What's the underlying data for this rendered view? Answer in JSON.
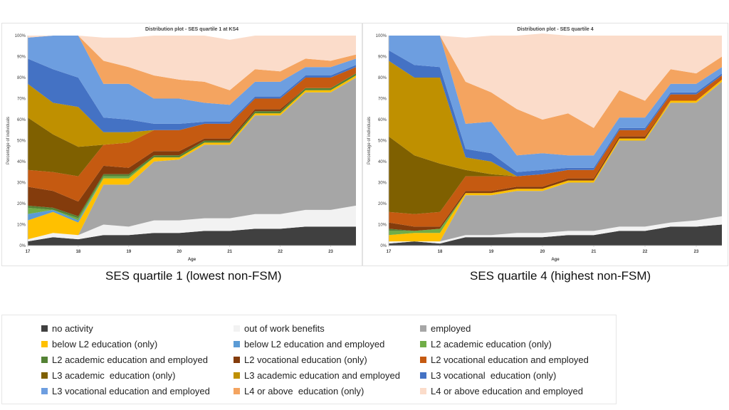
{
  "chart_data": [
    {
      "type": "area",
      "stacked": true,
      "title": "Distribution plot - SES quartile 1 at KS4",
      "xlabel": "Age",
      "ylabel": "Percentage of individuals",
      "ylim": [
        0,
        100
      ],
      "x": [
        17,
        17.5,
        18,
        18.5,
        19,
        19.5,
        20,
        20.5,
        21,
        21.5,
        22,
        22.5,
        23,
        23.5
      ],
      "x_ticks": [
        "17",
        "18",
        "19",
        "20",
        "21",
        "22",
        "23"
      ],
      "y_ticks": [
        "0%",
        "10%",
        "20%",
        "30%",
        "40%",
        "50%",
        "60%",
        "70%",
        "80%",
        "90%",
        "100%"
      ],
      "series": [
        {
          "name": "no activity",
          "values": [
            2,
            4,
            3,
            5,
            5,
            6,
            6,
            7,
            7,
            8,
            8,
            9,
            9,
            9
          ]
        },
        {
          "name": "out of work benefits",
          "values": [
            1,
            2,
            2,
            5,
            4,
            6,
            6,
            6,
            6,
            7,
            7,
            8,
            8,
            10
          ]
        },
        {
          "name": "employed",
          "values": [
            0,
            0,
            0,
            19,
            20,
            28,
            29,
            35,
            35,
            47,
            47,
            56,
            56,
            61
          ]
        },
        {
          "name": "below L2 education (only)",
          "values": [
            9,
            10,
            6,
            3,
            3,
            2,
            1,
            1,
            1,
            1,
            1,
            1,
            1,
            1
          ]
        },
        {
          "name": "below L2 education and employed",
          "values": [
            3,
            1,
            1,
            0,
            0,
            0,
            0,
            0,
            0,
            0,
            0,
            0,
            0,
            0
          ]
        },
        {
          "name": "L2 academic education (only)",
          "values": [
            3,
            0,
            1,
            1,
            1,
            0,
            0,
            0,
            0,
            0,
            0,
            0,
            0,
            0
          ]
        },
        {
          "name": "L2 academic education and employed",
          "values": [
            1,
            1,
            1,
            1,
            1,
            1,
            1,
            1,
            1,
            1,
            1,
            1,
            1,
            1
          ]
        },
        {
          "name": "L2 vocational education (only)",
          "values": [
            9,
            8,
            7,
            4,
            3,
            2,
            2,
            1,
            1,
            1,
            1,
            0,
            0,
            0
          ]
        },
        {
          "name": "L2 vocational education and employed",
          "values": [
            8,
            9,
            12,
            10,
            12,
            10,
            10,
            7,
            7,
            5,
            5,
            5,
            5,
            3
          ]
        },
        {
          "name": "L3 academic  education (only)",
          "values": [
            25,
            18,
            14,
            0,
            0,
            0,
            0,
            0,
            0,
            0,
            0,
            0,
            0,
            0
          ]
        },
        {
          "name": "L3 academic education and employed",
          "values": [
            16,
            15,
            19,
            6,
            5,
            0,
            0,
            0,
            0,
            0,
            0,
            0,
            0,
            0
          ]
        },
        {
          "name": "L3 vocational  education (only)",
          "values": [
            12,
            16,
            14,
            7,
            6,
            3,
            3,
            1,
            1,
            1,
            1,
            1,
            1,
            1
          ]
        },
        {
          "name": "L3 vocational education and employed",
          "values": [
            10,
            16,
            20,
            16,
            17,
            12,
            12,
            9,
            8,
            7,
            7,
            4,
            4,
            3
          ]
        },
        {
          "name": "L4 or above  education (only)",
          "values": [
            0,
            0,
            0,
            11,
            8,
            11,
            9,
            10,
            7,
            6,
            5,
            4,
            3,
            2
          ]
        },
        {
          "name": "L4 or above education and employed",
          "values": [
            1,
            0,
            0,
            11,
            14,
            19,
            21,
            22,
            24,
            16,
            17,
            11,
            12,
            9
          ]
        }
      ]
    },
    {
      "type": "area",
      "stacked": true,
      "title": "Distribution plot - SES quartile 4",
      "xlabel": "Age",
      "ylabel": "Percentage of individuals",
      "ylim": [
        0,
        100
      ],
      "x": [
        17,
        17.5,
        18,
        18.5,
        19,
        19.5,
        20,
        20.5,
        21,
        21.5,
        22,
        22.5,
        23,
        23.5
      ],
      "x_ticks": [
        "17",
        "18",
        "19",
        "20",
        "21",
        "22",
        "23"
      ],
      "y_ticks": [
        "0%",
        "10%",
        "20%",
        "30%",
        "40%",
        "50%",
        "60%",
        "70%",
        "80%",
        "90%",
        "100%"
      ],
      "series": [
        {
          "name": "no activity",
          "values": [
            1,
            2,
            1,
            4,
            4,
            4,
            4,
            5,
            5,
            7,
            7,
            9,
            9,
            10
          ]
        },
        {
          "name": "out of work benefits",
          "values": [
            1,
            0,
            1,
            1,
            1,
            2,
            2,
            2,
            2,
            2,
            2,
            2,
            3,
            4
          ]
        },
        {
          "name": "employed",
          "values": [
            0,
            0,
            0,
            19,
            19,
            20,
            20,
            23,
            23,
            41,
            41,
            57,
            56,
            64
          ]
        },
        {
          "name": "below L2 education (only)",
          "values": [
            3,
            4,
            4,
            1,
            1,
            1,
            1,
            1,
            1,
            1,
            1,
            1,
            1,
            1
          ]
        },
        {
          "name": "below L2 education and employed",
          "values": [
            0,
            0,
            0,
            0,
            0,
            0,
            0,
            0,
            0,
            0,
            0,
            0,
            0,
            0
          ]
        },
        {
          "name": "L2 academic education (only)",
          "values": [
            2,
            1,
            2,
            0,
            0,
            0,
            0,
            0,
            0,
            0,
            0,
            0,
            0,
            0
          ]
        },
        {
          "name": "L2 academic education and employed",
          "values": [
            1,
            0,
            0,
            0,
            0,
            0,
            0,
            0,
            0,
            0,
            0,
            0,
            0,
            0
          ]
        },
        {
          "name": "L2 vocational education (only)",
          "values": [
            3,
            2,
            1,
            1,
            1,
            1,
            1,
            1,
            1,
            1,
            1,
            0,
            0,
            0
          ]
        },
        {
          "name": "L2 vocational education and employed",
          "values": [
            5,
            6,
            7,
            7,
            7,
            5,
            6,
            4,
            4,
            3,
            3,
            3,
            3,
            2
          ]
        },
        {
          "name": "L3 academic  education (only)",
          "values": [
            36,
            28,
            23,
            3,
            1,
            0,
            0,
            0,
            0,
            0,
            0,
            0,
            0,
            0
          ]
        },
        {
          "name": "L3 academic education and employed",
          "values": [
            36,
            37,
            41,
            6,
            6,
            0,
            0,
            0,
            0,
            0,
            0,
            0,
            0,
            0
          ]
        },
        {
          "name": "L3 vocational  education (only)",
          "values": [
            5,
            6,
            5,
            4,
            4,
            2,
            2,
            1,
            1,
            1,
            1,
            1,
            1,
            1
          ]
        },
        {
          "name": "L3 vocational education and employed",
          "values": [
            7,
            14,
            15,
            12,
            15,
            8,
            8,
            6,
            6,
            5,
            5,
            4,
            4,
            3
          ]
        },
        {
          "name": "L4 or above  education (only)",
          "values": [
            0,
            0,
            0,
            20,
            14,
            22,
            16,
            20,
            13,
            13,
            8,
            7,
            5,
            5
          ]
        },
        {
          "name": "L4 or above education and employed",
          "values": [
            0,
            0,
            0,
            21,
            27,
            35,
            41,
            37,
            44,
            26,
            31,
            16,
            18,
            10
          ]
        }
      ]
    }
  ],
  "captions": {
    "left": "SES quartile 1 (lowest non-FSM)",
    "right": "SES quartile 4 (highest non-FSM)"
  },
  "colors": {
    "no activity": "#404040",
    "out of work benefits": "#f2f2f2",
    "employed": "#a6a6a6",
    "below L2 education (only)": "#ffc000",
    "below L2 education and employed": "#5b9bd5",
    "L2 academic education (only)": "#70ad47",
    "L2 academic education and employed": "#548235",
    "L2 vocational education (only)": "#843c0c",
    "L2 vocational education and employed": "#c55a11",
    "L3 academic  education (only)": "#7f6000",
    "L3 academic education and employed": "#bf9000",
    "L3 vocational  education (only)": "#4472c4",
    "L3 vocational education and employed": "#6d9ee0",
    "L4 or above  education (only)": "#f4a460",
    "L4 or above education and employed": "#fbdcca"
  },
  "legend": {
    "items": [
      "no activity",
      "out of work benefits",
      "employed",
      "below L2 education (only)",
      "below L2 education and employed",
      "L2 academic education (only)",
      "L2 academic education and employed",
      "L2 vocational education (only)",
      "L2 vocational education and employed",
      "L3 academic  education (only)",
      "L3 academic education and employed",
      "L3 vocational  education (only)",
      "L3 vocational education and employed",
      "L4 or above  education (only)",
      "L4 or above education and employed"
    ]
  }
}
